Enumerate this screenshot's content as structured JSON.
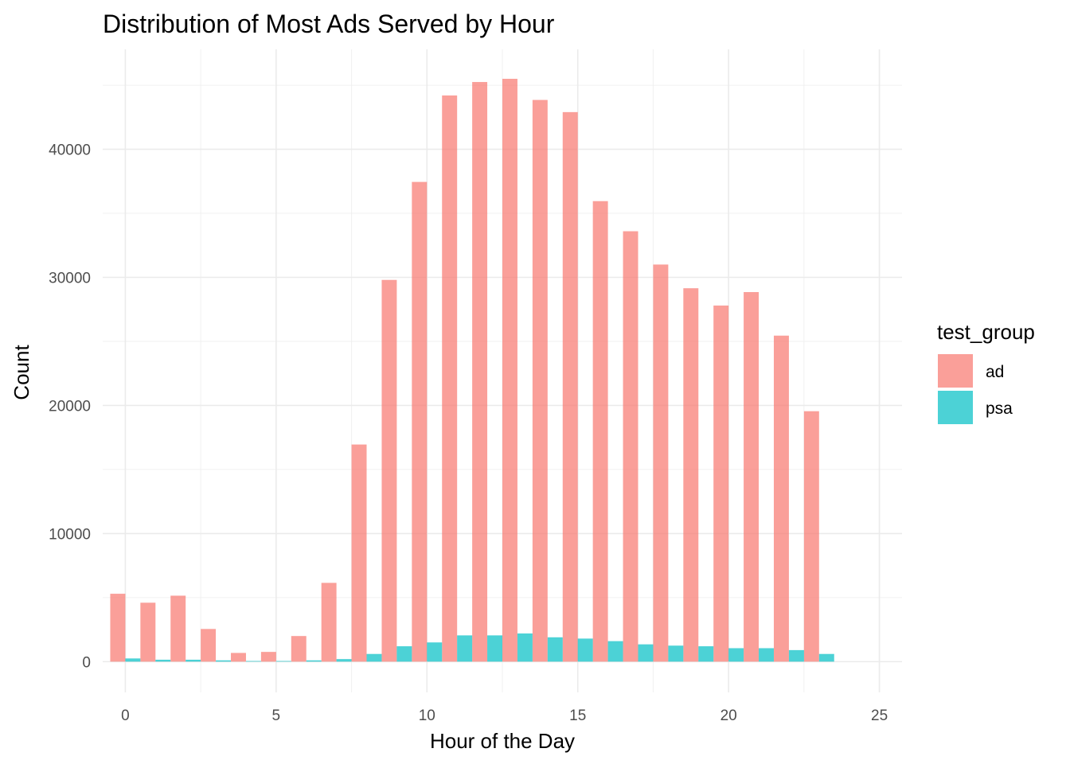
{
  "chart_data": {
    "type": "bar",
    "title": "Distribution of Most Ads Served by Hour",
    "xlabel": "Hour of the Day",
    "ylabel": "Count",
    "xlim": [
      -0.75,
      25.75
    ],
    "ylim": [
      -2400,
      47800
    ],
    "x_ticks": [
      0,
      5,
      10,
      15,
      20,
      25
    ],
    "y_ticks": [
      0,
      10000,
      20000,
      30000,
      40000
    ],
    "grid": true,
    "legend": {
      "title": "test_group",
      "placement": "right"
    },
    "x": [
      0,
      1,
      2,
      3,
      4,
      5,
      6,
      7,
      8,
      9,
      10,
      11,
      12,
      13,
      14,
      15,
      16,
      17,
      18,
      19,
      20,
      21,
      22,
      23
    ],
    "series": [
      {
        "name": "ad",
        "color": "#F8766D",
        "values": [
          5300,
          4600,
          5150,
          2550,
          680,
          760,
          2000,
          6150,
          16950,
          29800,
          37450,
          44200,
          45250,
          45500,
          43850,
          42900,
          35950,
          33600,
          31000,
          29150,
          27800,
          28850,
          25450,
          19550
        ]
      },
      {
        "name": "psa",
        "color": "#00BFC4",
        "values": [
          250,
          150,
          150,
          100,
          50,
          50,
          100,
          200,
          600,
          1200,
          1500,
          2050,
          2050,
          2200,
          1900,
          1800,
          1600,
          1350,
          1250,
          1200,
          1050,
          1050,
          900,
          600
        ]
      }
    ]
  }
}
